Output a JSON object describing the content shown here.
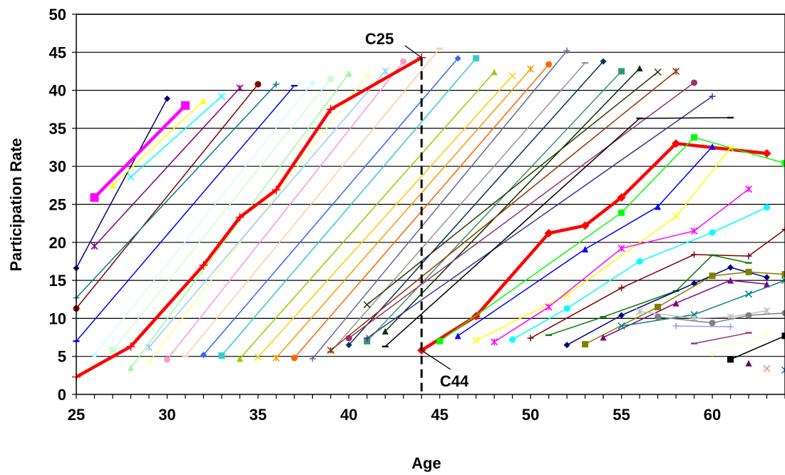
{
  "chart_data": {
    "type": "line",
    "title": "",
    "xlabel": "Age",
    "ylabel": "Participation Rate",
    "xlim": [
      25,
      64
    ],
    "ylim": [
      0,
      50
    ],
    "x_ticks": [
      "25",
      "30",
      "35",
      "40",
      "45",
      "50",
      "55",
      "60"
    ],
    "y_ticks": [
      "0",
      "5",
      "10",
      "15",
      "20",
      "25",
      "30",
      "35",
      "40",
      "45",
      "50"
    ],
    "grid": "horizontal",
    "legend": "none",
    "annotations": [
      {
        "text": "C25",
        "x": 44,
        "y": 44.3
      },
      {
        "text": "C44",
        "x": 44,
        "y": 5.8
      }
    ],
    "vertical_marker_age": 44,
    "series": [
      {
        "color": "#000080",
        "x": [
          25,
          30
        ],
        "y": [
          16.6,
          38.9
        ]
      },
      {
        "color": "#FF00FF",
        "x": [
          26,
          31
        ],
        "y": [
          25.9,
          38.0
        ]
      },
      {
        "color": "#FFFF00",
        "x": [
          27,
          32
        ],
        "y": [
          27.5,
          38.6
        ]
      },
      {
        "color": "#00FFFF",
        "x": [
          28,
          33
        ],
        "y": [
          28.6,
          39.2
        ]
      },
      {
        "color": "#800080",
        "x": [
          26,
          34
        ],
        "y": [
          19.5,
          40.3
        ]
      },
      {
        "color": "#800000",
        "x": [
          25,
          35
        ],
        "y": [
          11.3,
          40.8
        ]
      },
      {
        "color": "#008080",
        "x": [
          25,
          36
        ],
        "y": [
          12.7,
          40.8
        ]
      },
      {
        "color": "#0000FF",
        "x": [
          25,
          37
        ],
        "y": [
          7.0,
          40.6
        ]
      },
      {
        "color": "#CCFFFF",
        "x": [
          26,
          38
        ],
        "y": [
          5.2,
          41.0
        ]
      },
      {
        "color": "#CCFFCC",
        "x": [
          27,
          39
        ],
        "y": [
          5.8,
          41.5
        ]
      },
      {
        "color": "#99FF99",
        "x": [
          28,
          40
        ],
        "y": [
          3.5,
          42.2
        ]
      },
      {
        "color": "#FFFF99",
        "x": [
          29,
          41
        ],
        "y": [
          4.2,
          42.0
        ]
      },
      {
        "color": "#99CCFF",
        "x": [
          29,
          42
        ],
        "y": [
          6.2,
          42.5
        ]
      },
      {
        "color": "#FF99CC",
        "x": [
          30,
          43
        ],
        "y": [
          4.6,
          43.8
        ]
      },
      {
        "color": "#FF0000",
        "x": [
          25,
          28,
          32,
          34,
          36,
          39,
          44
        ],
        "y": [
          2.3,
          6.3,
          17.0,
          23.3,
          26.9,
          37.5,
          44.3
        ]
      },
      {
        "color": "#FFCC99",
        "x": [
          31,
          45
        ],
        "y": [
          5.0,
          45.5
        ]
      },
      {
        "color": "#3366FF",
        "x": [
          32,
          46
        ],
        "y": [
          5.2,
          44.2
        ]
      },
      {
        "color": "#33CCCC",
        "x": [
          33,
          47
        ],
        "y": [
          5.1,
          44.2
        ]
      },
      {
        "color": "#99CC00",
        "x": [
          34,
          48
        ],
        "y": [
          4.7,
          42.4
        ]
      },
      {
        "color": "#FFCC00",
        "x": [
          35,
          49
        ],
        "y": [
          4.9,
          41.9
        ]
      },
      {
        "color": "#FF9900",
        "x": [
          36,
          50
        ],
        "y": [
          4.8,
          42.8
        ]
      },
      {
        "color": "#FF6600",
        "x": [
          37,
          51
        ],
        "y": [
          4.8,
          43.4
        ]
      },
      {
        "color": "#666699",
        "x": [
          38,
          52
        ],
        "y": [
          4.7,
          45.2
        ]
      },
      {
        "color": "#969696",
        "x": [
          39,
          53
        ],
        "y": [
          5.6,
          43.6
        ]
      },
      {
        "color": "#003366",
        "x": [
          40,
          54
        ],
        "y": [
          6.5,
          43.8
        ]
      },
      {
        "color": "#339966",
        "x": [
          41,
          55
        ],
        "y": [
          7.0,
          42.5
        ]
      },
      {
        "color": "#003300",
        "x": [
          42,
          56
        ],
        "y": [
          8.3,
          42.9
        ]
      },
      {
        "color": "#333300",
        "x": [
          41,
          57
        ],
        "y": [
          11.8,
          42.4
        ]
      },
      {
        "color": "#993300",
        "x": [
          39,
          58
        ],
        "y": [
          5.8,
          42.5
        ]
      },
      {
        "color": "#993366",
        "x": [
          40,
          59
        ],
        "y": [
          7.4,
          41.0
        ]
      },
      {
        "color": "#333399",
        "x": [
          41,
          60
        ],
        "y": [
          7.4,
          39.2
        ]
      },
      {
        "color": "#000000",
        "x": [
          42,
          56,
          61
        ],
        "y": [
          6.3,
          36.3,
          36.4
        ]
      },
      {
        "color": "#FF0000",
        "x": [
          44,
          47,
          51,
          53,
          55,
          58,
          63
        ],
        "y": [
          5.8,
          10.3,
          21.2,
          22.2,
          25.9,
          33.0,
          31.7
        ]
      },
      {
        "color": "#00FF00",
        "x": [
          45,
          55,
          59,
          64
        ],
        "y": [
          7.0,
          23.9,
          33.8,
          30.4
        ]
      },
      {
        "color": "#0000FF",
        "x": [
          46,
          53,
          57,
          60
        ],
        "y": [
          7.7,
          19.1,
          24.7,
          32.6
        ]
      },
      {
        "color": "#FFFF00",
        "x": [
          47,
          52,
          58,
          61
        ],
        "y": [
          7.1,
          13.1,
          23.4,
          32.4
        ]
      },
      {
        "color": "#FF00FF",
        "x": [
          48,
          51,
          55,
          59,
          62
        ],
        "y": [
          6.9,
          11.5,
          19.2,
          21.5,
          27.0
        ]
      },
      {
        "color": "#00FFFF",
        "x": [
          49,
          52,
          56,
          60,
          63
        ],
        "y": [
          7.2,
          11.3,
          17.5,
          21.3,
          24.6
        ]
      },
      {
        "color": "#800000",
        "x": [
          50,
          55,
          59,
          62,
          64
        ],
        "y": [
          7.4,
          14.0,
          18.4,
          18.2,
          21.7
        ]
      },
      {
        "color": "#008000",
        "x": [
          51,
          54,
          58,
          60,
          62
        ],
        "y": [
          7.8,
          10.2,
          13.6,
          18.3,
          17.3
        ]
      },
      {
        "color": "#000080",
        "x": [
          52,
          55,
          59,
          61,
          63
        ],
        "y": [
          6.5,
          10.4,
          14.6,
          16.7,
          15.4
        ]
      },
      {
        "color": "#808000",
        "x": [
          53,
          57,
          60,
          62,
          64
        ],
        "y": [
          6.6,
          11.5,
          15.6,
          16.1,
          15.8
        ]
      },
      {
        "color": "#800080",
        "x": [
          54,
          58,
          61,
          63
        ],
        "y": [
          7.5,
          12.0,
          15.0,
          14.5
        ]
      },
      {
        "color": "#008080",
        "x": [
          55,
          59,
          62,
          64
        ],
        "y": [
          9.0,
          10.5,
          13.2,
          15.0
        ]
      },
      {
        "color": "#C0C0C0",
        "x": [
          56,
          59,
          61,
          63
        ],
        "y": [
          10.9,
          10.0,
          10.2,
          11.0
        ]
      },
      {
        "color": "#808080",
        "x": [
          57,
          60,
          62,
          64
        ],
        "y": [
          10.2,
          9.4,
          10.4,
          10.7
        ]
      },
      {
        "color": "#9999FF",
        "x": [
          58,
          61
        ],
        "y": [
          9.0,
          8.9
        ]
      },
      {
        "color": "#993366",
        "x": [
          59,
          62
        ],
        "y": [
          6.7,
          8.1
        ]
      },
      {
        "color": "#FFFFCC",
        "x": [
          60,
          63
        ],
        "y": [
          5.4,
          8.0
        ]
      },
      {
        "color": "#000000",
        "x": [
          61,
          64
        ],
        "y": [
          4.6,
          7.7
        ]
      },
      {
        "color": "#660066",
        "x": [
          62
        ],
        "y": [
          4.1
        ]
      },
      {
        "color": "#FF8080",
        "x": [
          63
        ],
        "y": [
          3.4
        ]
      },
      {
        "color": "#0066CC",
        "x": [
          64
        ],
        "y": [
          3.2
        ]
      }
    ]
  }
}
